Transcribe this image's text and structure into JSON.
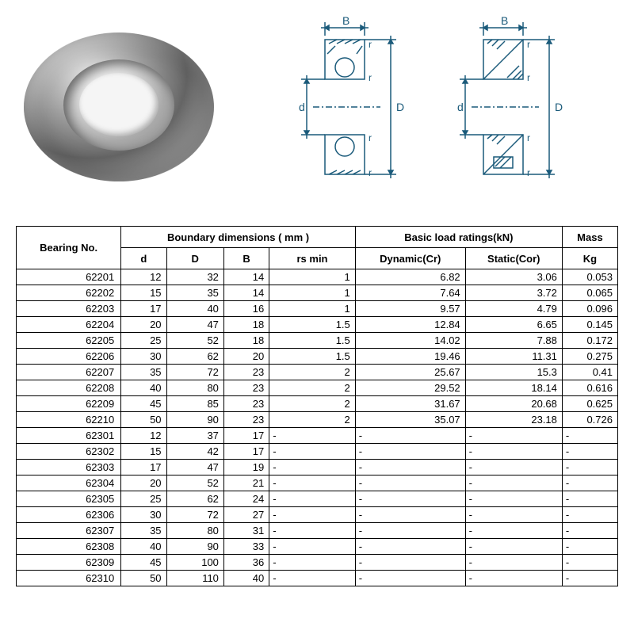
{
  "headers": {
    "bearing_no": "Bearing No.",
    "boundary": "Boundary dimensions ( mm )",
    "basic_load": "Basic load ratings(kN)",
    "mass": "Mass",
    "d": "d",
    "D": "D",
    "B": "B",
    "rs_min": "rs min",
    "dynamic": "Dynamic(Cr)",
    "static": "Static(Cor)",
    "kg": "Kg"
  },
  "diagram_labels": {
    "B": "B",
    "d": "d",
    "D": "D",
    "r": "r"
  },
  "rows": [
    {
      "no": "62201",
      "d": "12",
      "D": "32",
      "B": "14",
      "rs": "1",
      "dyn": "6.82",
      "stat": "3.06",
      "kg": "0.053"
    },
    {
      "no": "62202",
      "d": "15",
      "D": "35",
      "B": "14",
      "rs": "1",
      "dyn": "7.64",
      "stat": "3.72",
      "kg": "0.065"
    },
    {
      "no": "62203",
      "d": "17",
      "D": "40",
      "B": "16",
      "rs": "1",
      "dyn": "9.57",
      "stat": "4.79",
      "kg": "0.096"
    },
    {
      "no": "62204",
      "d": "20",
      "D": "47",
      "B": "18",
      "rs": "1.5",
      "dyn": "12.84",
      "stat": "6.65",
      "kg": "0.145"
    },
    {
      "no": "62205",
      "d": "25",
      "D": "52",
      "B": "18",
      "rs": "1.5",
      "dyn": "14.02",
      "stat": "7.88",
      "kg": "0.172"
    },
    {
      "no": "62206",
      "d": "30",
      "D": "62",
      "B": "20",
      "rs": "1.5",
      "dyn": "19.46",
      "stat": "11.31",
      "kg": "0.275"
    },
    {
      "no": "62207",
      "d": "35",
      "D": "72",
      "B": "23",
      "rs": "2",
      "dyn": "25.67",
      "stat": "15.3",
      "kg": "0.41"
    },
    {
      "no": "62208",
      "d": "40",
      "D": "80",
      "B": "23",
      "rs": "2",
      "dyn": "29.52",
      "stat": "18.14",
      "kg": "0.616"
    },
    {
      "no": "62209",
      "d": "45",
      "D": "85",
      "B": "23",
      "rs": "2",
      "dyn": "31.67",
      "stat": "20.68",
      "kg": "0.625"
    },
    {
      "no": "62210",
      "d": "50",
      "D": "90",
      "B": "23",
      "rs": "2",
      "dyn": "35.07",
      "stat": "23.18",
      "kg": "0.726"
    },
    {
      "no": "62301",
      "d": "12",
      "D": "37",
      "B": "17",
      "rs": "-",
      "dyn": "-",
      "stat": "-",
      "kg": "-"
    },
    {
      "no": "62302",
      "d": "15",
      "D": "42",
      "B": "17",
      "rs": "-",
      "dyn": "-",
      "stat": "-",
      "kg": "-"
    },
    {
      "no": "62303",
      "d": "17",
      "D": "47",
      "B": "19",
      "rs": "-",
      "dyn": "-",
      "stat": "-",
      "kg": "-"
    },
    {
      "no": "62304",
      "d": "20",
      "D": "52",
      "B": "21",
      "rs": "-",
      "dyn": "-",
      "stat": "-",
      "kg": "-"
    },
    {
      "no": "62305",
      "d": "25",
      "D": "62",
      "B": "24",
      "rs": "-",
      "dyn": "-",
      "stat": "-",
      "kg": "-"
    },
    {
      "no": "62306",
      "d": "30",
      "D": "72",
      "B": "27",
      "rs": "-",
      "dyn": "-",
      "stat": "-",
      "kg": "-"
    },
    {
      "no": "62307",
      "d": "35",
      "D": "80",
      "B": "31",
      "rs": "-",
      "dyn": "-",
      "stat": "-",
      "kg": "-"
    },
    {
      "no": "62308",
      "d": "40",
      "D": "90",
      "B": "33",
      "rs": "-",
      "dyn": "-",
      "stat": "-",
      "kg": "-"
    },
    {
      "no": "62309",
      "d": "45",
      "D": "100",
      "B": "36",
      "rs": "-",
      "dyn": "-",
      "stat": "-",
      "kg": "-"
    },
    {
      "no": "62310",
      "d": "50",
      "D": "110",
      "B": "40",
      "rs": "-",
      "dyn": "-",
      "stat": "-",
      "kg": "-"
    }
  ],
  "colors": {
    "stroke": "#1a5a7a",
    "hatch": "#2a6a8a"
  }
}
